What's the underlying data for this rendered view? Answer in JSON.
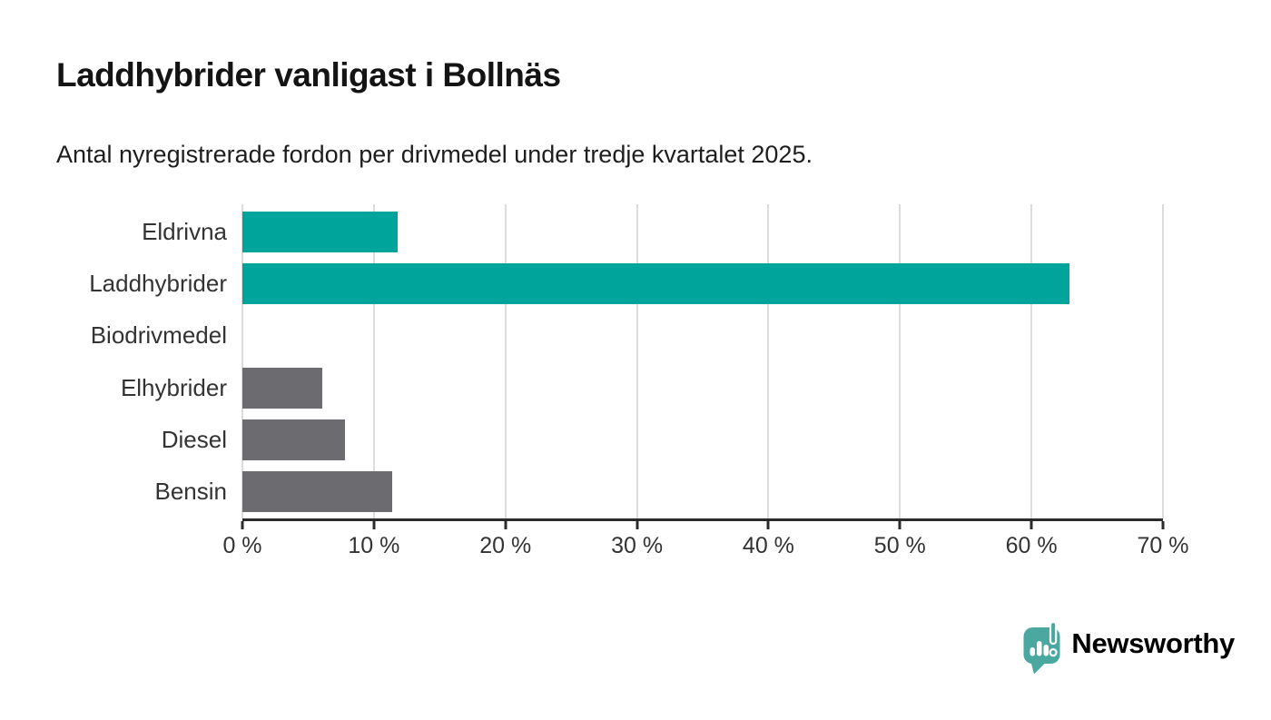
{
  "page": {
    "title": "Laddhybrider vanligast i Bollnäs",
    "subtitle": "Antal nyregistrerade fordon per drivmedel under tredje kvartalet 2025."
  },
  "branding": {
    "name": "Newsworthy",
    "icon": "bar-chart-speech-bubble-icon",
    "icon_color": "#4aa8a0",
    "text_color": "#3da49c"
  },
  "chart_data": {
    "type": "bar",
    "orientation": "horizontal",
    "title": "Laddhybrider vanligast i Bollnäs",
    "subtitle": "Antal nyregistrerade fordon per drivmedel under tredje kvartalet 2025.",
    "categories": [
      "Eldrivna",
      "Laddhybrider",
      "Biodrivmedel",
      "Elhybrider",
      "Diesel",
      "Bensin"
    ],
    "values": [
      11.8,
      62.9,
      0,
      6.1,
      7.8,
      11.4
    ],
    "unit": "%",
    "highlighted": [
      true,
      true,
      false,
      false,
      false,
      false
    ],
    "highlight_color": "#00a49b",
    "bar_color": "#6b6b70",
    "xlim": [
      0,
      70
    ],
    "x_ticks": [
      0,
      10,
      20,
      30,
      40,
      50,
      60,
      70
    ],
    "x_tick_labels": [
      "0 %",
      "10 %",
      "20 %",
      "30 %",
      "40 %",
      "50 %",
      "60 %",
      "70 %"
    ],
    "grid": true,
    "gridline_color": "#dcdcdc",
    "axis_color": "#2b2b2b",
    "legend": false
  }
}
